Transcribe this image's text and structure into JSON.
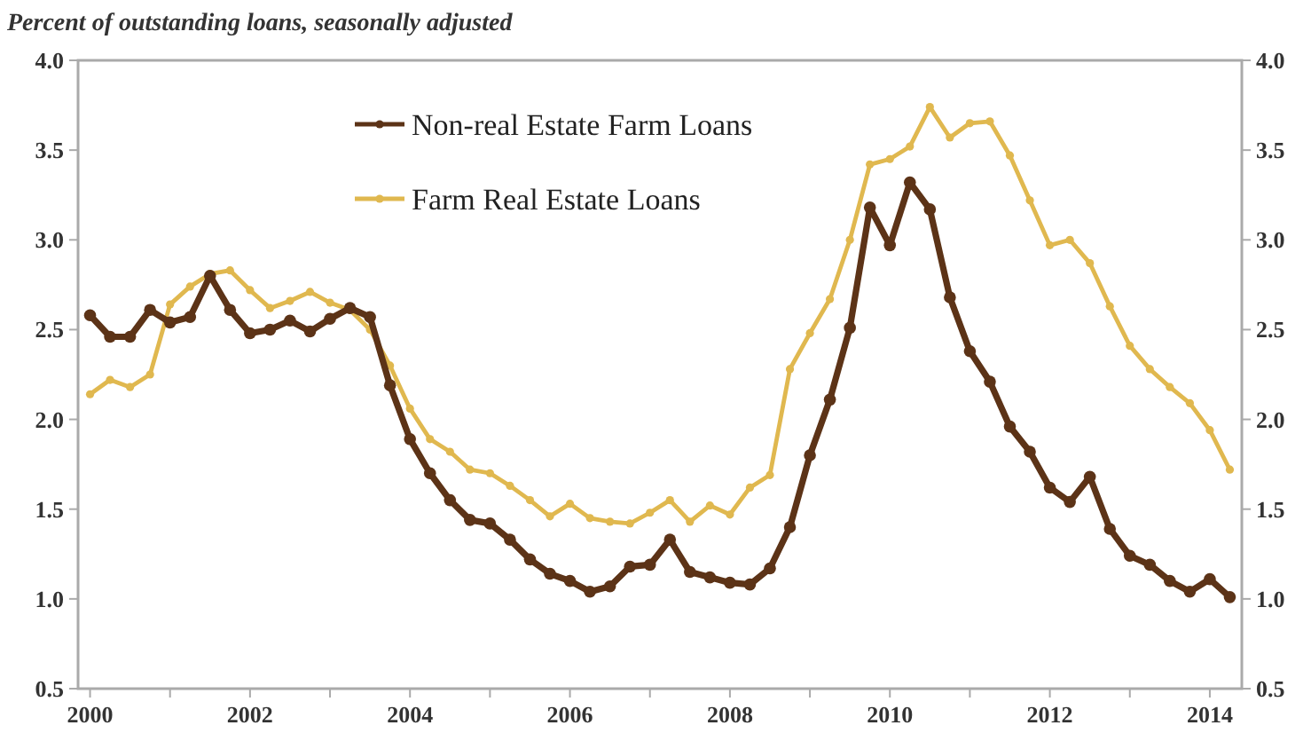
{
  "chart_data": {
    "type": "line",
    "title": "Percent of outstanding loans, seasonally adjusted",
    "x": [
      2000,
      2000.25,
      2000.5,
      2000.75,
      2001,
      2001.25,
      2001.5,
      2001.75,
      2002,
      2002.25,
      2002.5,
      2002.75,
      2003,
      2003.25,
      2003.5,
      2003.75,
      2004,
      2004.25,
      2004.5,
      2004.75,
      2005,
      2005.25,
      2005.5,
      2005.75,
      2006,
      2006.25,
      2006.5,
      2006.75,
      2007,
      2007.25,
      2007.5,
      2007.75,
      2008,
      2008.25,
      2008.5,
      2008.75,
      2009,
      2009.25,
      2009.5,
      2009.75,
      2010,
      2010.25,
      2010.5,
      2010.75,
      2011,
      2011.25,
      2011.5,
      2011.75,
      2012,
      2012.25,
      2012.5,
      2012.75,
      2013,
      2013.25,
      2013.5,
      2013.75,
      2014,
      2014.25
    ],
    "series": [
      {
        "name": "Non-real Estate Farm Loans",
        "color": "#5c3317",
        "values": [
          2.58,
          2.46,
          2.46,
          2.61,
          2.54,
          2.57,
          2.8,
          2.61,
          2.48,
          2.5,
          2.55,
          2.49,
          2.56,
          2.62,
          2.57,
          2.19,
          1.89,
          1.7,
          1.55,
          1.44,
          1.42,
          1.33,
          1.22,
          1.14,
          1.1,
          1.04,
          1.07,
          1.18,
          1.19,
          1.33,
          1.15,
          1.12,
          1.09,
          1.08,
          1.17,
          1.4,
          1.8,
          2.11,
          2.51,
          3.18,
          2.97,
          3.32,
          3.17,
          2.68,
          2.38,
          2.21,
          1.96,
          1.82,
          1.62,
          1.54,
          1.68,
          1.39,
          1.24,
          1.19,
          1.1,
          1.04,
          1.11,
          1.01
        ]
      },
      {
        "name": "Farm Real Estate Loans",
        "color": "#e0b84f",
        "values": [
          2.14,
          2.22,
          2.18,
          2.25,
          2.64,
          2.74,
          2.81,
          2.83,
          2.72,
          2.62,
          2.66,
          2.71,
          2.65,
          2.61,
          2.5,
          2.3,
          2.06,
          1.89,
          1.82,
          1.72,
          1.7,
          1.63,
          1.55,
          1.46,
          1.53,
          1.45,
          1.43,
          1.42,
          1.48,
          1.55,
          1.43,
          1.52,
          1.47,
          1.62,
          1.69,
          2.28,
          2.48,
          2.67,
          3.0,
          3.42,
          3.45,
          3.52,
          3.74,
          3.57,
          3.65,
          3.66,
          3.47,
          3.22,
          2.97,
          3.0,
          2.87,
          2.63,
          2.41,
          2.28,
          2.18,
          2.09,
          1.94,
          1.72
        ]
      }
    ],
    "xlim": [
      1999.85,
      2014.4
    ],
    "xticks": [
      2000,
      {
        "value": 2001,
        "label": null
      },
      2002,
      {
        "value": 2003,
        "label": null
      },
      2004,
      {
        "value": 2005,
        "label": null
      },
      2006,
      {
        "value": 2007,
        "label": null
      },
      2008,
      {
        "value": 2009,
        "label": null
      },
      2010,
      {
        "value": 2011,
        "label": null
      },
      2012,
      {
        "value": 2013,
        "label": null
      },
      2014
    ],
    "ylim": [
      0.5,
      4.0
    ],
    "yticks": [
      {
        "value": 0.5,
        "label": "0.5"
      },
      {
        "value": 1,
        "label": "1.0"
      },
      {
        "value": 1.5,
        "label": "1.5"
      },
      {
        "value": 2,
        "label": "2.0"
      },
      {
        "value": 2.5,
        "label": "2.5"
      },
      {
        "value": 3,
        "label": "3.0"
      },
      {
        "value": 3.5,
        "label": "3.5"
      },
      {
        "value": 4,
        "label": "4.0"
      }
    ],
    "y2lim": [
      0.5,
      4.0
    ],
    "y2ticks": [
      {
        "value": 0.5,
        "label": "0.5"
      },
      {
        "value": 1,
        "label": "1.0"
      },
      {
        "value": 1.5,
        "label": "1.5"
      },
      {
        "value": 2,
        "label": "2.0"
      },
      {
        "value": 2.5,
        "label": "2.5"
      },
      {
        "value": 3,
        "label": "3.0"
      },
      {
        "value": 3.5,
        "label": "3.5"
      },
      {
        "value": 4,
        "label": "4.0"
      }
    ],
    "legend": "top",
    "marker": "circle",
    "line_style": "solid",
    "grid": false
  }
}
